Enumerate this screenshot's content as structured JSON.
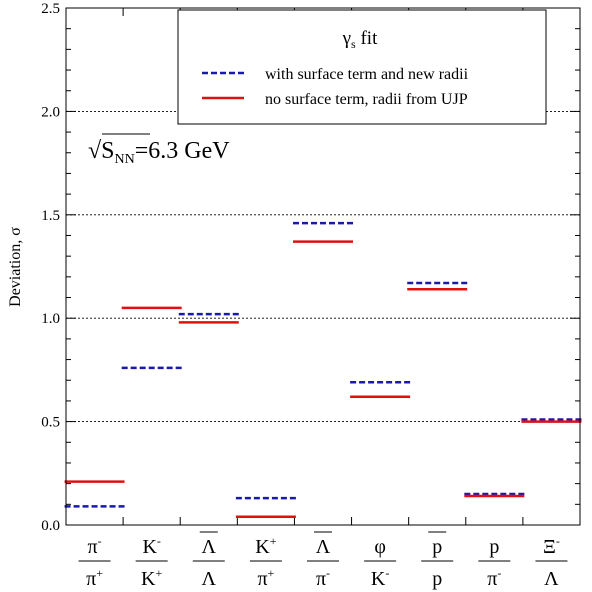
{
  "chart_data": {
    "type": "scatter",
    "marker": "horizontal-dash",
    "ylabel": "Deviation, σ",
    "ylim": [
      0,
      2.5
    ],
    "yticks": [
      "0.0",
      "0.5",
      "1.0",
      "1.5",
      "2.0",
      "2.5"
    ],
    "grid_y": [
      0.5,
      1.0,
      1.5,
      2.0
    ],
    "categories": [
      {
        "num": "π",
        "num_sup": "-",
        "num_bar": false,
        "den": "π",
        "den_sup": "+",
        "den_bar": false
      },
      {
        "num": "K",
        "num_sup": "-",
        "num_bar": false,
        "den": "K",
        "den_sup": "+",
        "den_bar": false
      },
      {
        "num": "Λ",
        "num_sup": "",
        "num_bar": true,
        "den": "Λ",
        "den_sup": "",
        "den_bar": false
      },
      {
        "num": "K",
        "num_sup": "+",
        "num_bar": false,
        "den": "π",
        "den_sup": "+",
        "den_bar": false
      },
      {
        "num": "Λ",
        "num_sup": "",
        "num_bar": true,
        "den": "π",
        "den_sup": "-",
        "den_bar": false
      },
      {
        "num": "φ",
        "num_sup": "",
        "num_bar": false,
        "den": "K",
        "den_sup": "-",
        "den_bar": false
      },
      {
        "num": "p",
        "num_sup": "",
        "num_bar": true,
        "den": "p",
        "den_sup": "",
        "den_bar": false
      },
      {
        "num": "p",
        "num_sup": "",
        "num_bar": false,
        "den": "π",
        "den_sup": "-",
        "den_bar": false
      },
      {
        "num": "Ξ",
        "num_sup": "-",
        "num_bar": false,
        "den": "Λ",
        "den_sup": "",
        "den_bar": false
      }
    ],
    "series": [
      {
        "name": "with surface term and new radii",
        "color": "#1a1aa8",
        "dash": "dashed",
        "values": [
          0.09,
          0.76,
          1.02,
          0.13,
          1.46,
          0.69,
          1.17,
          0.15,
          0.51
        ]
      },
      {
        "name": "no surface term, radii from UJP",
        "color": "#e01010",
        "dash": "solid",
        "values": [
          0.21,
          1.05,
          0.98,
          0.04,
          1.37,
          0.62,
          1.14,
          0.14,
          0.5
        ]
      }
    ],
    "legend": {
      "title": "γ",
      "title_sub": "s",
      "title_rest": " fit",
      "placement": "top-right"
    },
    "annotation": {
      "root": "√",
      "main": "S",
      "sub": "NN",
      "rest": "=6.3 GeV"
    }
  }
}
